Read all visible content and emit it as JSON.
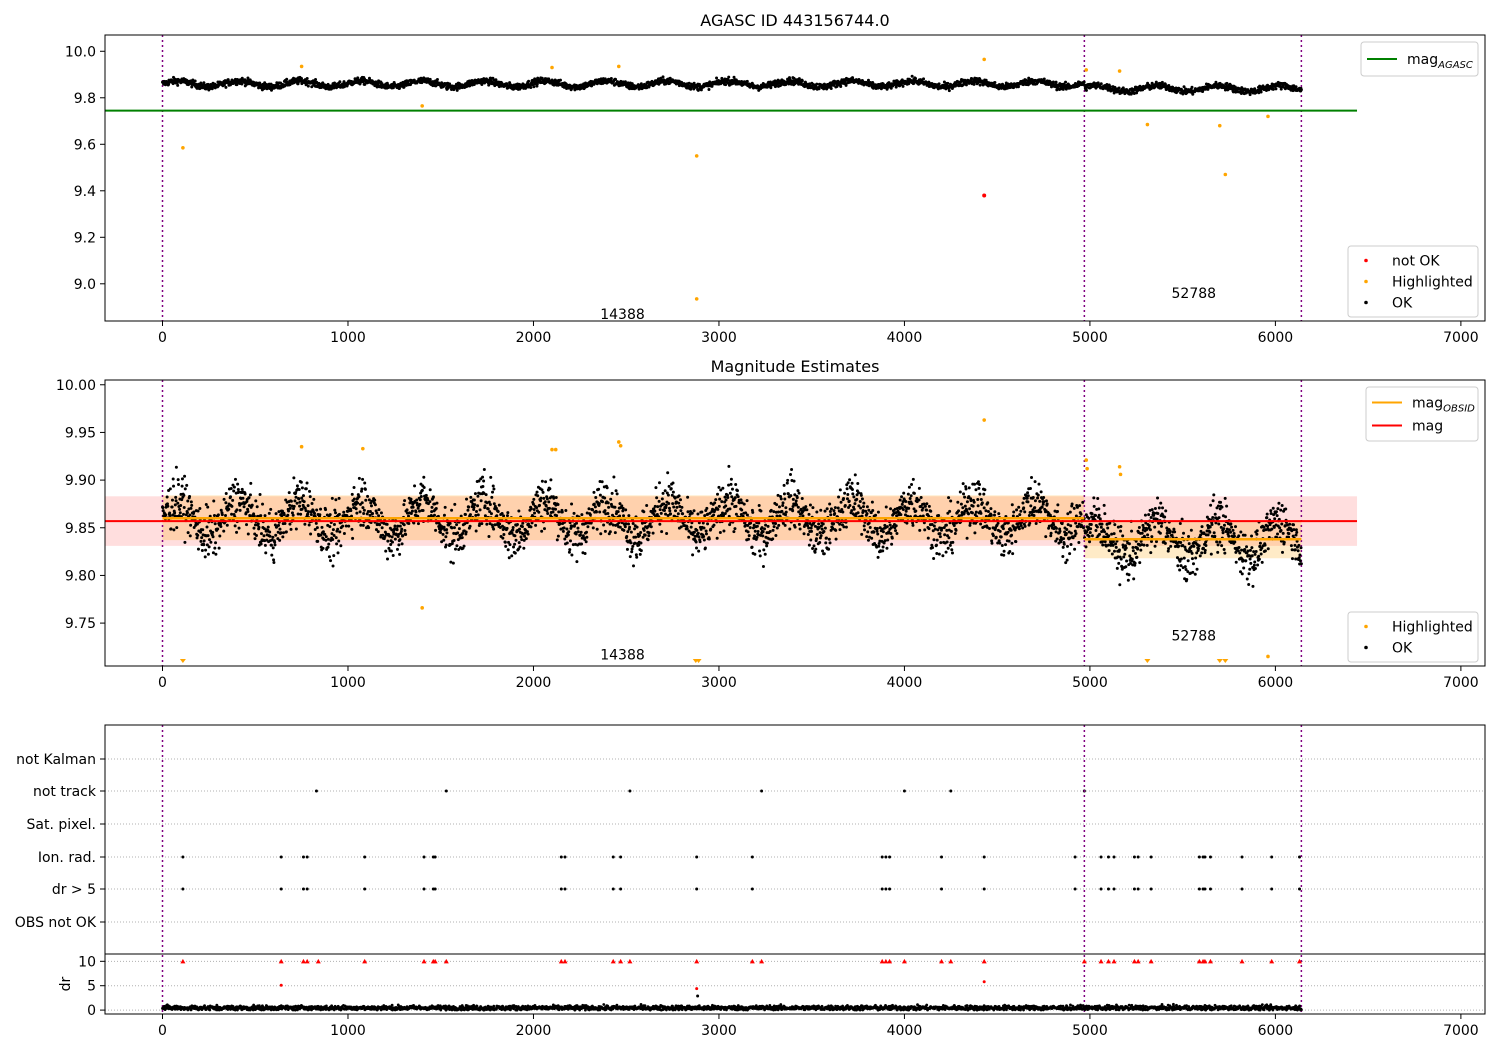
{
  "chart_data": [
    {
      "type": "scatter",
      "title": "AGASC ID 443156744.0",
      "xlim": [
        -310,
        7130
      ],
      "ylim": [
        8.84,
        10.07
      ],
      "xticks": [
        "0",
        "1000",
        "2000",
        "3000",
        "4000",
        "5000",
        "6000",
        "7000"
      ],
      "yticks": [
        "9.0",
        "9.2",
        "9.4",
        "9.6",
        "9.8",
        "10.0"
      ],
      "grid": false,
      "legends": [
        {
          "placement": "top-right",
          "entries": [
            {
              "label": "mag",
              "subscript": "AGASC",
              "color": "#008000",
              "kind": "line"
            }
          ]
        },
        {
          "placement": "bottom-right",
          "entries": [
            {
              "label": "not OK",
              "color": "#ff0000",
              "kind": "dot"
            },
            {
              "label": "Highlighted",
              "color": "#ffa500",
              "kind": "dot"
            },
            {
              "label": "OK",
              "color": "#000000",
              "kind": "dot"
            }
          ]
        }
      ],
      "obsid_labels": [
        {
          "text": "14388",
          "x": 2480,
          "y": 8.87
        },
        {
          "text": "52788",
          "x": 5560,
          "y": 8.96
        }
      ],
      "boundaries": [
        0,
        4970,
        6140
      ],
      "reference_lines": [
        {
          "name": "mag AGASC",
          "y": 9.745,
          "x_range": [
            -310,
            6440
          ],
          "color": "#008000"
        }
      ],
      "ok_series_wave": {
        "x_range": [
          0,
          6140
        ],
        "points": 3000,
        "base_segments": [
          {
            "x_range": [
              0,
              4970
            ],
            "level": 9.86
          },
          {
            "x_range": [
              4970,
              6140
            ],
            "level": 9.84
          }
        ],
        "amplitude": 0.025,
        "period": 330,
        "scatter": 0.012
      },
      "highlighted": [
        {
          "x": 110,
          "y": 9.585
        },
        {
          "x": 750,
          "y": 9.935
        },
        {
          "x": 1400,
          "y": 9.765
        },
        {
          "x": 2100,
          "y": 9.93
        },
        {
          "x": 2460,
          "y": 9.935
        },
        {
          "x": 2880,
          "y": 9.55
        },
        {
          "x": 2880,
          "y": 8.935
        },
        {
          "x": 4430,
          "y": 9.965
        },
        {
          "x": 4980,
          "y": 9.92
        },
        {
          "x": 5160,
          "y": 9.915
        },
        {
          "x": 5310,
          "y": 9.685
        },
        {
          "x": 5700,
          "y": 9.68
        },
        {
          "x": 5730,
          "y": 9.47
        },
        {
          "x": 5960,
          "y": 9.72
        }
      ],
      "not_ok": [
        {
          "x": 4430,
          "y": 9.38
        }
      ]
    },
    {
      "type": "scatter",
      "title": "Magnitude Estimates",
      "xlim": [
        -310,
        7130
      ],
      "ylim": [
        9.705,
        10.005
      ],
      "xticks": [
        "0",
        "1000",
        "2000",
        "3000",
        "4000",
        "5000",
        "6000",
        "7000"
      ],
      "yticks": [
        "9.75",
        "9.80",
        "9.85",
        "9.90",
        "9.95",
        "10.00"
      ],
      "grid": false,
      "legends": [
        {
          "placement": "top-right",
          "entries": [
            {
              "label": "mag",
              "subscript": "OBSID",
              "color": "#ffa500",
              "kind": "line"
            },
            {
              "label": "mag",
              "subscript": "",
              "color": "#ff0000",
              "kind": "line"
            }
          ]
        },
        {
          "placement": "bottom-right",
          "entries": [
            {
              "label": "Highlighted",
              "color": "#ffa500",
              "kind": "dot"
            },
            {
              "label": "OK",
              "color": "#000000",
              "kind": "dot"
            }
          ]
        }
      ],
      "obsid_labels": [
        {
          "text": "14388",
          "x": 2480,
          "y": 9.717
        },
        {
          "text": "52788",
          "x": 5560,
          "y": 9.737
        }
      ],
      "boundaries": [
        0,
        4970,
        6140
      ],
      "mag_line": {
        "y": 9.857,
        "band": [
          9.831,
          9.883
        ],
        "x_range": [
          -310,
          6440
        ],
        "color": "#ff0000"
      },
      "obsid_lines": [
        {
          "x_range": [
            0,
            4970
          ],
          "y": 9.86,
          "band": [
            9.837,
            9.884
          ]
        },
        {
          "x_range": [
            4970,
            6140
          ],
          "y": 9.838,
          "band": [
            9.818,
            9.858
          ]
        }
      ],
      "highlighted": [
        {
          "x": 750,
          "y": 9.935
        },
        {
          "x": 1080,
          "y": 9.933
        },
        {
          "x": 1400,
          "y": 9.766
        },
        {
          "x": 2100,
          "y": 9.932
        },
        {
          "x": 2120,
          "y": 9.932
        },
        {
          "x": 2460,
          "y": 9.94
        },
        {
          "x": 2470,
          "y": 9.936
        },
        {
          "x": 4430,
          "y": 9.963
        },
        {
          "x": 4980,
          "y": 9.921
        },
        {
          "x": 4985,
          "y": 9.912
        },
        {
          "x": 5160,
          "y": 9.914
        },
        {
          "x": 5165,
          "y": 9.906
        },
        {
          "x": 5960,
          "y": 9.715
        }
      ],
      "off_scale_markers": [
        110,
        2875,
        2890,
        5310,
        5700,
        5730
      ]
    },
    {
      "type": "scatter",
      "title": "",
      "xlim": [
        -310,
        7130
      ],
      "xticks": [
        "0",
        "1000",
        "2000",
        "3000",
        "4000",
        "5000",
        "6000",
        "7000"
      ],
      "boundaries": [
        0,
        4970,
        6140
      ],
      "flag_rows": [
        "not Kalman",
        "not track",
        "Sat. pixel.",
        "Ion. rad.",
        "dr > 5",
        "OBS not OK"
      ],
      "flag_events": {
        "not track": [
          830,
          1530,
          2520,
          3230,
          4000,
          4250,
          4970
        ],
        "Ion. rad.": [
          110,
          640,
          760,
          780,
          1090,
          1410,
          1460,
          1470,
          2150,
          2170,
          2430,
          2470,
          2880,
          3180,
          3880,
          3900,
          3920,
          4200,
          4430,
          4920,
          5060,
          5100,
          5130,
          5240,
          5260,
          5330,
          5590,
          5610,
          5620,
          5650,
          5820,
          5980,
          6130
        ],
        "dr > 5": [
          110,
          640,
          760,
          780,
          1090,
          1410,
          1460,
          1470,
          2150,
          2170,
          2430,
          2470,
          2880,
          3180,
          3880,
          3900,
          3920,
          4200,
          4430,
          4920,
          5060,
          5100,
          5130,
          5240,
          5260,
          5330,
          5590,
          5610,
          5620,
          5650,
          5820,
          5980,
          6130
        ]
      },
      "dr_ylabel": "dr",
      "dr_ylim": [
        -0.8,
        11.5
      ],
      "dr_yticks": [
        "0",
        "5",
        "10"
      ],
      "dr_capped_markers": [
        110,
        640,
        760,
        780,
        840,
        1090,
        1410,
        1460,
        1470,
        1530,
        2150,
        2170,
        2430,
        2470,
        2520,
        2880,
        3180,
        3230,
        3880,
        3900,
        3920,
        4000,
        4200,
        4250,
        4430,
        4970,
        5060,
        5100,
        5130,
        5240,
        5260,
        5330,
        5590,
        5610,
        5620,
        5650,
        5820,
        5980,
        6130
      ],
      "dr_outliers": [
        {
          "x": 640,
          "y": 5.1
        },
        {
          "x": 2880,
          "y": 4.4
        },
        {
          "x": 2885,
          "y": 2.9
        },
        {
          "x": 4430,
          "y": 5.8
        }
      ]
    }
  ]
}
